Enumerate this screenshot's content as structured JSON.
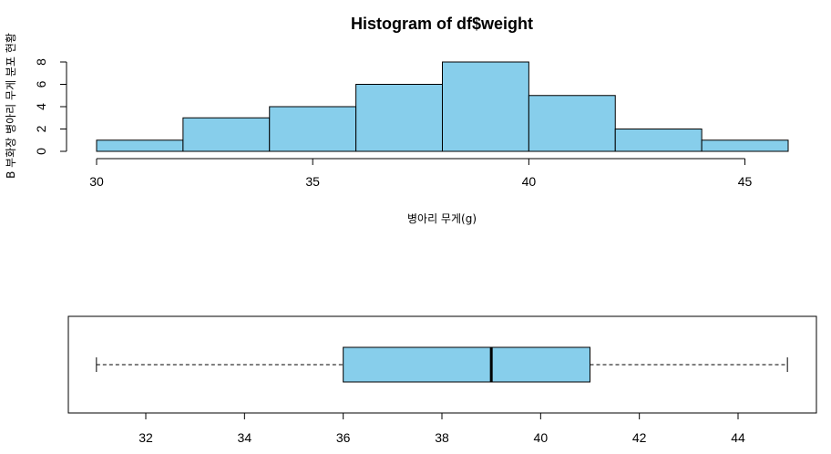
{
  "chart_data": [
    {
      "type": "histogram",
      "title": "Histogram of df$weight",
      "xlabel": "병아리 무게(g)",
      "ylabel": "B 부화장 병아리 무게 분포 현황",
      "bin_edges": [
        30,
        32,
        34,
        36,
        38,
        40,
        42,
        44,
        46
      ],
      "counts": [
        1,
        3,
        4,
        6,
        8,
        5,
        2,
        1
      ],
      "xticks": [
        "30",
        "35",
        "40",
        "45"
      ],
      "yticks": [
        "0",
        "2",
        "4",
        "6",
        "8"
      ],
      "xlim": [
        30,
        46
      ],
      "ylim": [
        0,
        8
      ],
      "bar_color": "#87CEEB",
      "grid": false
    },
    {
      "type": "boxplot",
      "orientation": "horizontal",
      "whisker_low": 31,
      "q1": 36,
      "median": 39,
      "q3": 41,
      "whisker_high": 45,
      "xticks": [
        "32",
        "34",
        "36",
        "38",
        "40",
        "42",
        "44"
      ],
      "xlim": [
        30.4,
        45.6
      ],
      "box_color": "#87CEEB",
      "grid": false
    }
  ]
}
